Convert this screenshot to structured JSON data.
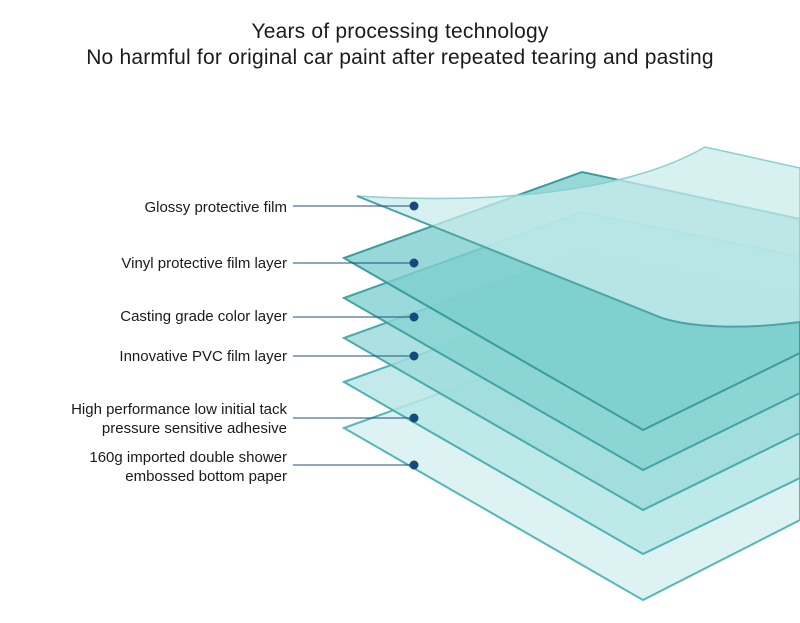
{
  "header": {
    "line1": "Years of processing technology",
    "line2": "No harmful for original car paint after repeated tearing and pasting"
  },
  "layers": [
    {
      "lines": [
        "Glossy protective film"
      ]
    },
    {
      "lines": [
        "Vinyl protective film layer"
      ]
    },
    {
      "lines": [
        "Casting grade color layer"
      ]
    },
    {
      "lines": [
        "Innovative PVC film layer"
      ]
    },
    {
      "lines": [
        "High performance low initial tack",
        "pressure sensitive adhesive"
      ]
    },
    {
      "lines": [
        "160g imported double shower",
        "embossed bottom paper"
      ]
    }
  ],
  "colors": {
    "leader_line": "#1f4e7a",
    "leader_dot": "#174a7c",
    "layer_edge": "#3aa7a7",
    "layer_fill": "#8fd6d6"
  }
}
